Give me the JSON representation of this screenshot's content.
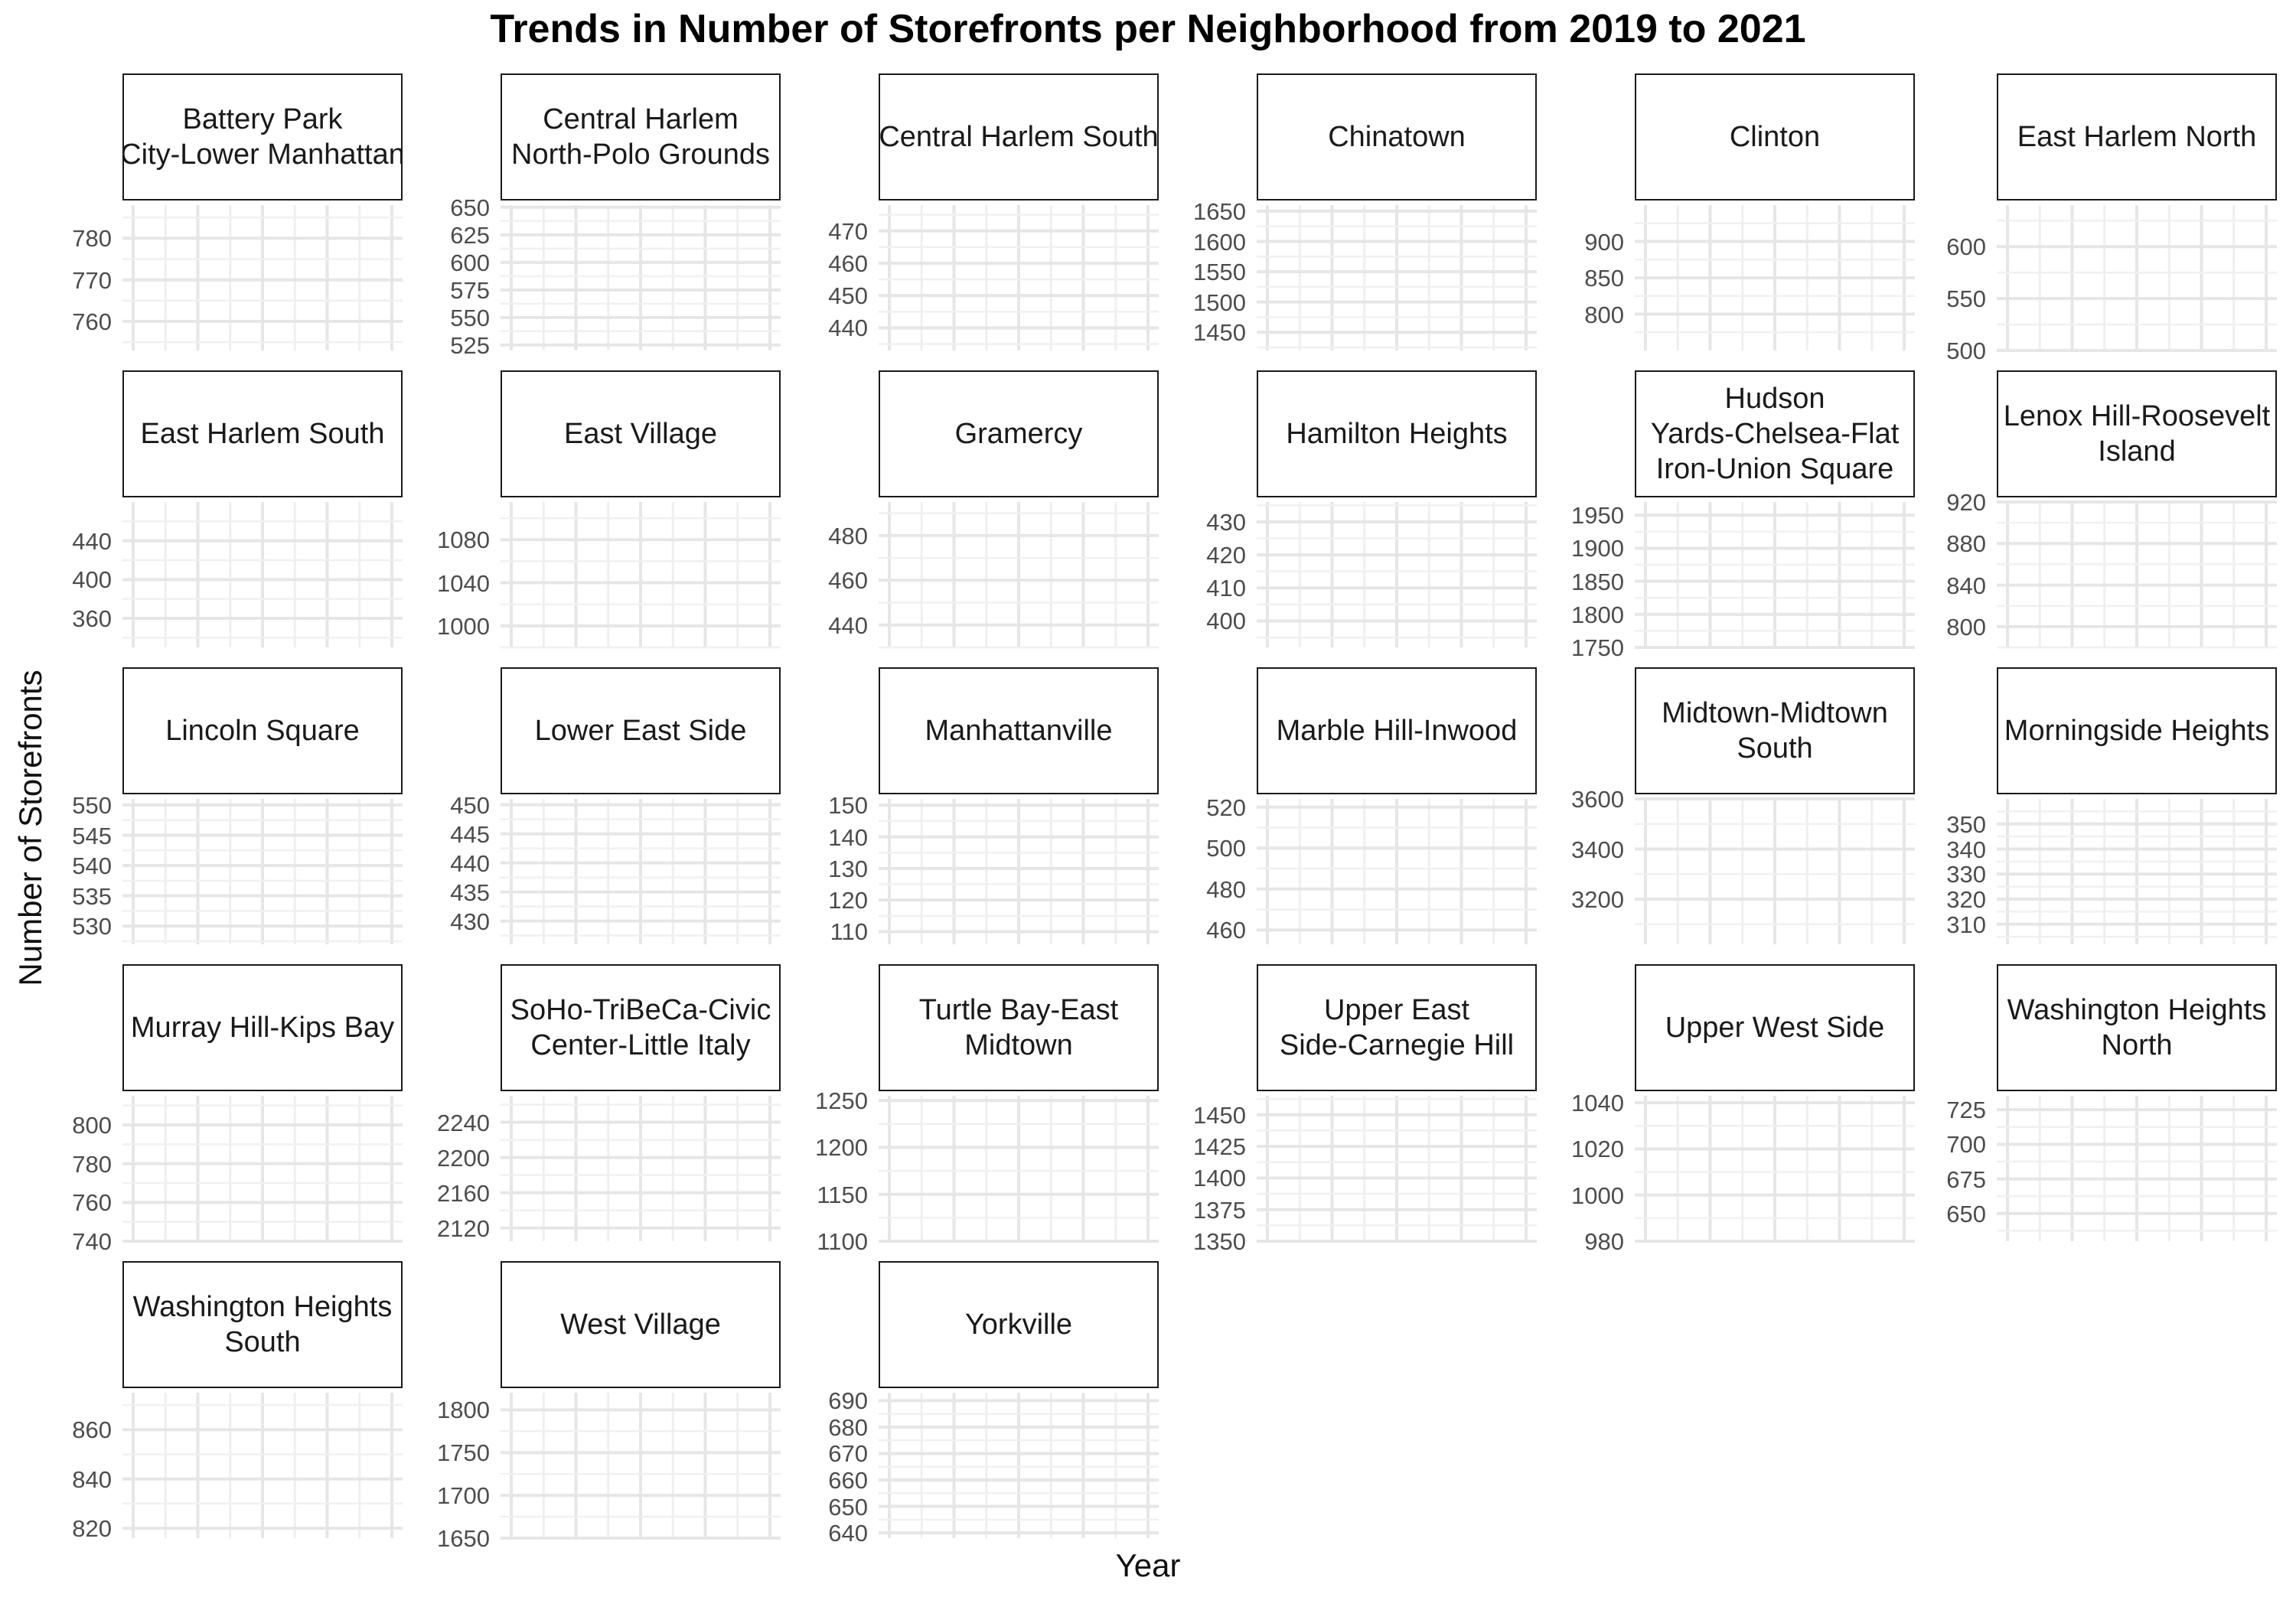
{
  "chart_data": {
    "type": "line",
    "title": "Trends in Number of Storefronts per Neighborhood from 2019 to 2021",
    "xlabel": "Year",
    "ylabel": "Number of Storefronts",
    "grid": true,
    "legend": "none",
    "facets": [
      {
        "name": "Battery Park\nCity-Lower Manhattan",
        "ylim": [
          753,
          788
        ],
        "y_ticks": [
          760,
          770,
          780
        ]
      },
      {
        "name": "Central Harlem\nNorth-Polo Grounds",
        "ylim": [
          520,
          652
        ],
        "y_ticks": [
          525,
          550,
          575,
          600,
          625,
          650
        ]
      },
      {
        "name": "Central Harlem South",
        "ylim": [
          433,
          478
        ],
        "y_ticks": [
          440,
          450,
          460,
          470
        ]
      },
      {
        "name": "Chinatown",
        "ylim": [
          1420,
          1660
        ],
        "y_ticks": [
          1450,
          1500,
          1550,
          1600,
          1650
        ]
      },
      {
        "name": "Clinton",
        "ylim": [
          750,
          950
        ],
        "y_ticks": [
          800,
          850,
          900
        ]
      },
      {
        "name": "East Harlem North",
        "ylim": [
          500,
          640
        ],
        "y_ticks": [
          500,
          550,
          600
        ]
      },
      {
        "name": "East Harlem South",
        "ylim": [
          330,
          480
        ],
        "y_ticks": [
          360,
          400,
          440
        ]
      },
      {
        "name": "East Village",
        "ylim": [
          980,
          1115
        ],
        "y_ticks": [
          1000,
          1040,
          1080
        ]
      },
      {
        "name": "Gramercy",
        "ylim": [
          430,
          495
        ],
        "y_ticks": [
          440,
          460,
          480
        ]
      },
      {
        "name": "Hamilton Heights",
        "ylim": [
          392,
          436
        ],
        "y_ticks": [
          400,
          410,
          420,
          430
        ]
      },
      {
        "name": "Hudson\nYards-Chelsea-Flat\nIron-Union Square",
        "ylim": [
          1750,
          1970
        ],
        "y_ticks": [
          1750,
          1800,
          1850,
          1900,
          1950
        ]
      },
      {
        "name": "Lenox Hill-Roosevelt\nIsland",
        "ylim": [
          780,
          920
        ],
        "y_ticks": [
          800,
          840,
          880,
          920
        ]
      },
      {
        "name": "Lincoln Square",
        "ylim": [
          527,
          551
        ],
        "y_ticks": [
          530,
          535,
          540,
          545,
          550
        ]
      },
      {
        "name": "Lower East Side",
        "ylim": [
          426,
          451
        ],
        "y_ticks": [
          430,
          435,
          440,
          445,
          450
        ]
      },
      {
        "name": "Manhattanville",
        "ylim": [
          106,
          152
        ],
        "y_ticks": [
          110,
          120,
          130,
          140,
          150
        ]
      },
      {
        "name": "Marble Hill-Inwood",
        "ylim": [
          453,
          524
        ],
        "y_ticks": [
          460,
          480,
          500,
          520
        ]
      },
      {
        "name": "Midtown-Midtown\nSouth",
        "ylim": [
          3020,
          3600
        ],
        "y_ticks": [
          3200,
          3400,
          3600
        ]
      },
      {
        "name": "Morningside Heights",
        "ylim": [
          302,
          360
        ],
        "y_ticks": [
          310,
          320,
          330,
          340,
          350
        ]
      },
      {
        "name": "Murray Hill-Kips Bay",
        "ylim": [
          740,
          815
        ],
        "y_ticks": [
          740,
          760,
          780,
          800
        ]
      },
      {
        "name": "SoHo-TriBeCa-Civic\nCenter-Little Italy",
        "ylim": [
          2105,
          2270
        ],
        "y_ticks": [
          2120,
          2160,
          2200,
          2240
        ]
      },
      {
        "name": "Turtle Bay-East\nMidtown",
        "ylim": [
          1100,
          1255
        ],
        "y_ticks": [
          1100,
          1150,
          1200,
          1250
        ]
      },
      {
        "name": "Upper East\nSide-Carnegie Hill",
        "ylim": [
          1350,
          1465
        ],
        "y_ticks": [
          1350,
          1375,
          1400,
          1425,
          1450
        ]
      },
      {
        "name": "Upper West Side",
        "ylim": [
          980,
          1043
        ],
        "y_ticks": [
          980,
          1000,
          1020,
          1040
        ]
      },
      {
        "name": "Washington Heights\nNorth",
        "ylim": [
          630,
          735
        ],
        "y_ticks": [
          650,
          675,
          700,
          725
        ]
      },
      {
        "name": "Washington Heights\nSouth",
        "ylim": [
          816,
          875
        ],
        "y_ticks": [
          820,
          840,
          860
        ]
      },
      {
        "name": "West Village",
        "ylim": [
          1650,
          1820
        ],
        "y_ticks": [
          1650,
          1700,
          1750,
          1800
        ]
      },
      {
        "name": "Yorkville",
        "ylim": [
          638,
          693
        ],
        "y_ticks": [
          640,
          650,
          660,
          670,
          680,
          690
        ]
      }
    ]
  }
}
